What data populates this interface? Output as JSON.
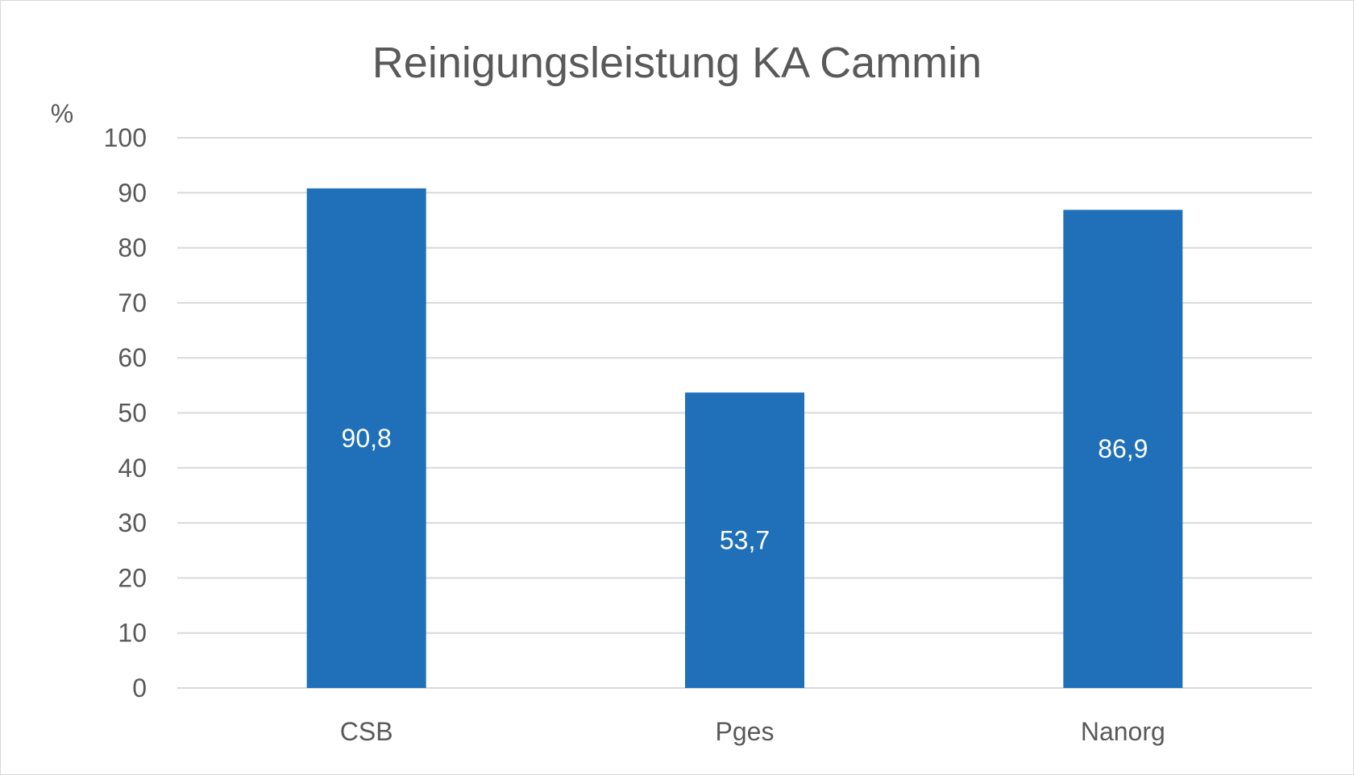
{
  "chart_data": {
    "type": "bar",
    "title": "Reinigungsleistung KA Cammin",
    "ylabel": "%",
    "xlabel": "",
    "categories": [
      "CSB",
      "Pges",
      "Nanorg"
    ],
    "values": [
      90.8,
      53.7,
      86.9
    ],
    "data_labels": [
      "90,8",
      "53,7",
      "86,9"
    ],
    "ylim": [
      0,
      100
    ],
    "yticks": [
      0,
      10,
      20,
      30,
      40,
      50,
      60,
      70,
      80,
      90,
      100
    ],
    "grid": true,
    "legend": "none",
    "colors": {
      "bar": "#1f70b8",
      "grid": "#d9d9d9",
      "text": "#595959",
      "label": "#ffffff"
    }
  }
}
